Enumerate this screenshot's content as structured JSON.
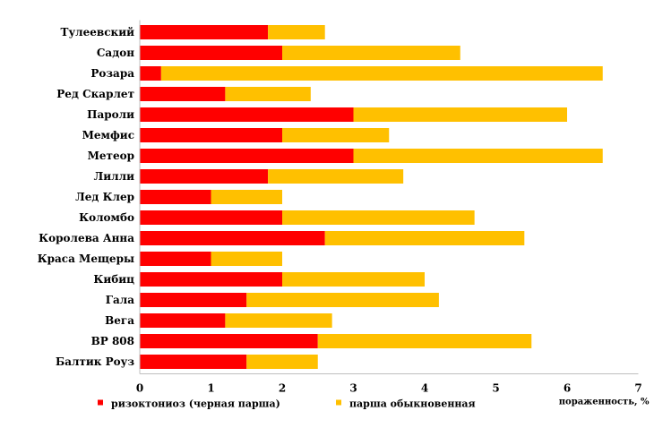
{
  "chart_data": {
    "type": "bar",
    "orientation": "horizontal",
    "stacked": true,
    "categories": [
      "Тулеевский",
      "Садон",
      "Розара",
      "Ред Скарлет",
      "Пароли",
      "Мемфис",
      "Метеор",
      "Лилли",
      "Лед Клер",
      "Коломбо",
      "Королева Анна",
      "Краса Мещеры",
      "Кибиц",
      "Гала",
      "Вега",
      "ВР 808",
      "Балтик Роуз"
    ],
    "series": [
      {
        "name": "ризоктониоз (черная парша)",
        "color": "#ff0000",
        "values": [
          1.8,
          2.0,
          0.3,
          1.2,
          3.0,
          2.0,
          3.0,
          1.8,
          1.0,
          2.0,
          2.6,
          1.0,
          2.0,
          1.5,
          1.2,
          2.5,
          1.5
        ]
      },
      {
        "name": "парша обыкновенная",
        "color": "#ffc000",
        "values": [
          0.8,
          2.5,
          6.2,
          1.2,
          3.0,
          1.5,
          3.5,
          1.9,
          1.0,
          2.7,
          2.8,
          1.0,
          2.0,
          2.7,
          1.5,
          3.0,
          1.0
        ]
      }
    ],
    "xlabel": "пораженность, %",
    "xlim": [
      0,
      7
    ],
    "xticks": [
      "0",
      "1",
      "2",
      "3",
      "4",
      "5",
      "6",
      "7"
    ],
    "grid": false,
    "legend_position": "bottom"
  }
}
